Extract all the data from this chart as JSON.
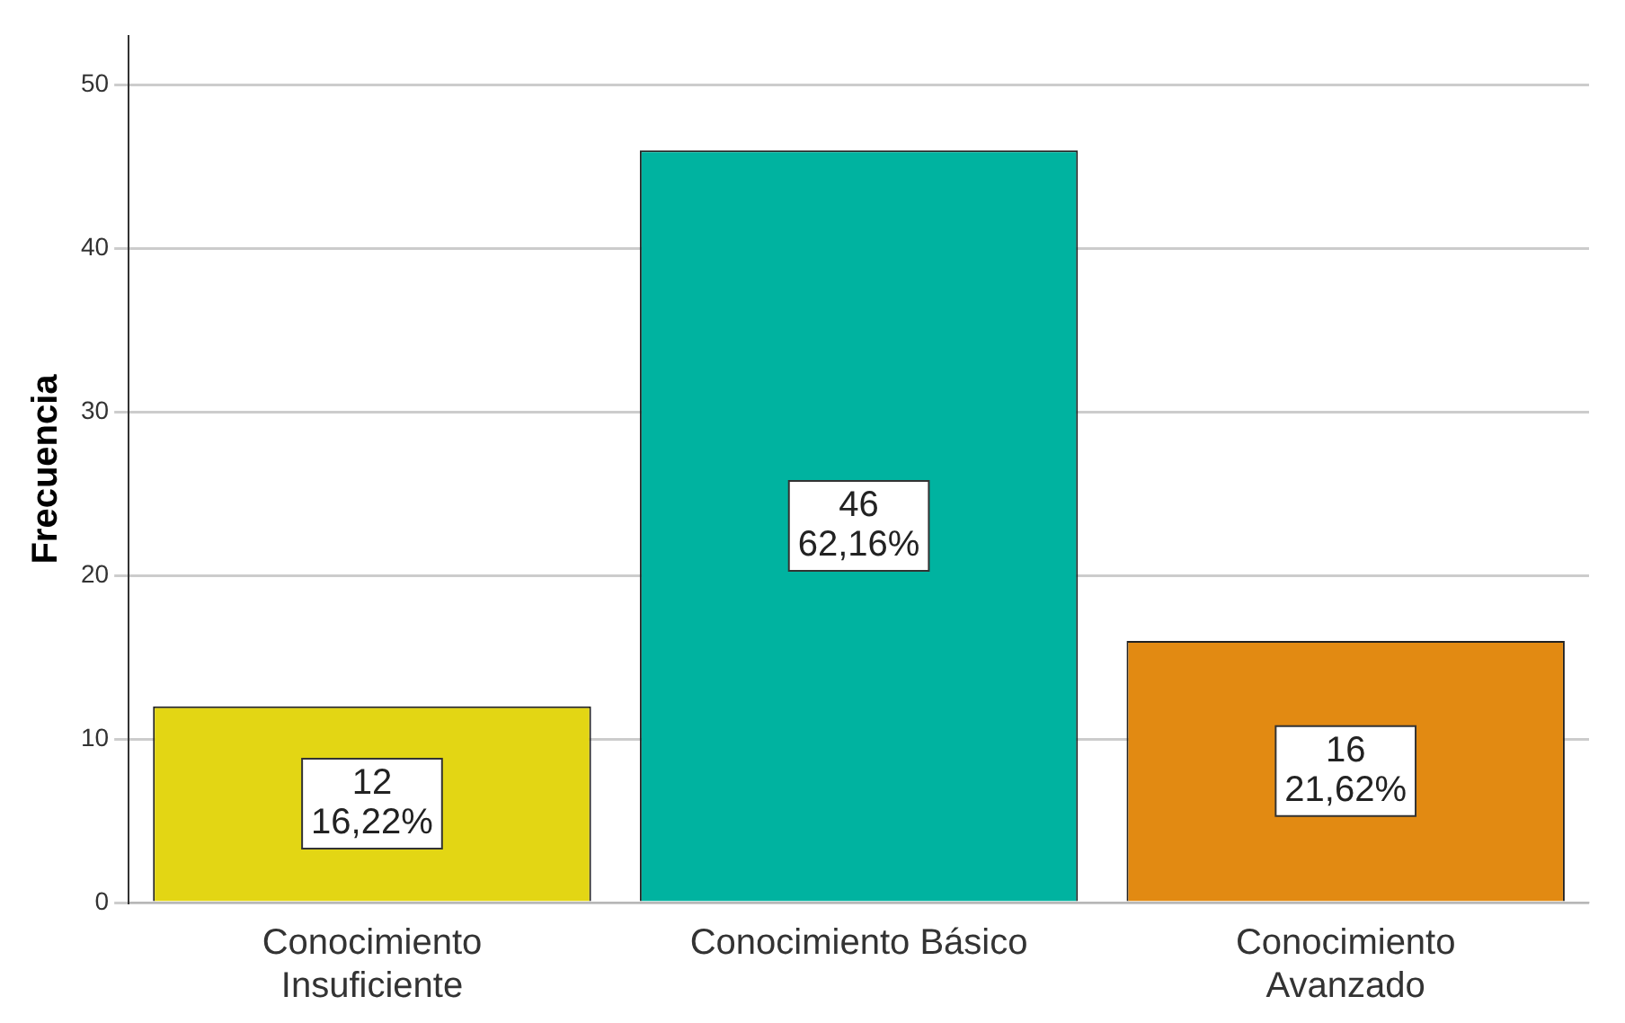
{
  "chart_data": {
    "type": "bar",
    "ylabel": "Frecuencia",
    "categories": [
      "Conocimiento Insuficiente",
      "Conocimiento Básico",
      "Conocimiento Avanzado"
    ],
    "values": [
      12,
      46,
      16
    ],
    "colors": [
      "#e3d614",
      "#00b3a0",
      "#e28a12"
    ],
    "value_labels": [
      "12\n16,22%",
      "46\n62,16%",
      "16\n21,62%"
    ],
    "ylim": [
      0,
      53
    ],
    "yticks": [
      0,
      10,
      20,
      30,
      40,
      50
    ],
    "grid": "y",
    "legend": false
  }
}
